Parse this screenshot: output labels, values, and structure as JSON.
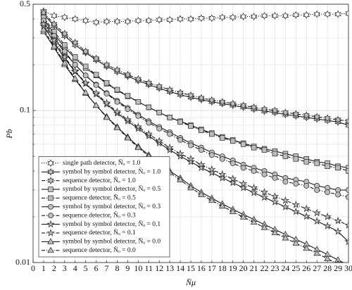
{
  "chart_data": {
    "type": "line",
    "x_label": "N̄μ",
    "y_label": "Pb",
    "x": [
      1,
      2,
      3,
      4,
      5,
      6,
      7,
      8,
      9,
      10,
      11,
      12,
      13,
      14,
      15,
      16,
      17,
      18,
      19,
      20,
      21,
      22,
      23,
      24,
      25,
      26,
      27,
      28,
      29,
      30
    ],
    "xlim": [
      0,
      30
    ],
    "xticks": [
      0,
      1,
      2,
      3,
      4,
      5,
      6,
      7,
      8,
      9,
      10,
      11,
      12,
      13,
      14,
      15,
      16,
      17,
      18,
      19,
      20,
      21,
      22,
      23,
      24,
      25,
      26,
      27,
      28,
      29,
      30
    ],
    "ylim": [
      0.01,
      0.5
    ],
    "yticks": [
      0.01,
      0.1,
      0.5
    ],
    "y_minor_grid": [
      0.02,
      0.03,
      0.04,
      0.05,
      0.06,
      0.07,
      0.08,
      0.09,
      0.2,
      0.3,
      0.4
    ],
    "log_y": true,
    "grid": true,
    "legend": "lower left",
    "series": [
      {
        "name": "single path detector, N̄ₒ = 1.0",
        "marker": "hexagram",
        "dash": "dotted",
        "color": "#000000",
        "marker_fill": "#ffffff",
        "values": [
          0.45,
          0.42,
          0.41,
          0.4,
          0.39,
          0.38,
          0.385,
          0.385,
          0.385,
          0.39,
          0.39,
          0.395,
          0.395,
          0.4,
          0.4,
          0.405,
          0.405,
          0.41,
          0.41,
          0.415,
          0.415,
          0.42,
          0.42,
          0.42,
          0.425,
          0.425,
          0.43,
          0.43,
          0.43,
          0.435
        ]
      },
      {
        "name": "symbol by symbol detector, N̄ₒ = 1.0",
        "marker": "hexagram",
        "dash": "solid",
        "color": "#000000",
        "marker_fill": "#bdbdbd",
        "values": [
          0.43,
          0.36,
          0.31,
          0.27,
          0.24,
          0.215,
          0.195,
          0.18,
          0.168,
          0.157,
          0.148,
          0.14,
          0.133,
          0.127,
          0.122,
          0.118,
          0.114,
          0.111,
          0.108,
          0.105,
          0.102,
          0.099,
          0.097,
          0.094,
          0.092,
          0.09,
          0.088,
          0.086,
          0.084,
          0.08
        ]
      },
      {
        "name": "sequence detector, N̄ₒ = 1.0",
        "marker": "hexagram",
        "dash": "dashdot",
        "color": "#000000",
        "marker_fill": "#bdbdbd",
        "values": [
          0.44,
          0.37,
          0.32,
          0.28,
          0.245,
          0.22,
          0.2,
          0.185,
          0.172,
          0.161,
          0.152,
          0.144,
          0.137,
          0.131,
          0.126,
          0.121,
          0.117,
          0.114,
          0.111,
          0.108,
          0.105,
          0.102,
          0.1,
          0.097,
          0.095,
          0.093,
          0.091,
          0.089,
          0.087,
          0.085
        ]
      },
      {
        "name": "symbol by symbol detector, N̄ₒ = 0.5",
        "marker": "square",
        "dash": "solid",
        "color": "#000000",
        "marker_fill": "#bdbdbd",
        "values": [
          0.4,
          0.32,
          0.26,
          0.22,
          0.19,
          0.17,
          0.15,
          0.136,
          0.124,
          0.114,
          0.105,
          0.097,
          0.09,
          0.085,
          0.08,
          0.075,
          0.071,
          0.067,
          0.064,
          0.061,
          0.058,
          0.056,
          0.054,
          0.052,
          0.05,
          0.048,
          0.046,
          0.045,
          0.043,
          0.042
        ]
      },
      {
        "name": "sequence detector, N̄ₒ = 0.5",
        "marker": "square",
        "dash": "dashdot",
        "color": "#000000",
        "marker_fill": "#bdbdbd",
        "values": [
          0.41,
          0.33,
          0.27,
          0.225,
          0.195,
          0.172,
          0.152,
          0.137,
          0.125,
          0.114,
          0.105,
          0.097,
          0.09,
          0.084,
          0.079,
          0.074,
          0.07,
          0.066,
          0.063,
          0.06,
          0.057,
          0.055,
          0.052,
          0.05,
          0.048,
          0.046,
          0.045,
          0.043,
          0.042,
          0.04
        ]
      },
      {
        "name": "symbol by symbol detector, N̄ₒ = 0.3",
        "marker": "circle",
        "dash": "solid",
        "color": "#000000",
        "marker_fill": "#bdbdbd",
        "values": [
          0.38,
          0.3,
          0.24,
          0.2,
          0.17,
          0.148,
          0.13,
          0.116,
          0.104,
          0.094,
          0.085,
          0.078,
          0.072,
          0.066,
          0.061,
          0.057,
          0.053,
          0.05,
          0.047,
          0.044,
          0.042,
          0.04,
          0.038,
          0.036,
          0.035,
          0.034,
          0.032,
          0.031,
          0.03,
          0.03
        ]
      },
      {
        "name": "sequence detector, N̄ₒ = 0.3",
        "marker": "circle",
        "dash": "dashdot",
        "color": "#000000",
        "marker_fill": "#bdbdbd",
        "values": [
          0.39,
          0.31,
          0.245,
          0.2,
          0.17,
          0.147,
          0.129,
          0.114,
          0.102,
          0.092,
          0.083,
          0.076,
          0.07,
          0.064,
          0.059,
          0.055,
          0.051,
          0.048,
          0.045,
          0.042,
          0.04,
          0.038,
          0.036,
          0.034,
          0.033,
          0.032,
          0.03,
          0.029,
          0.028,
          0.027
        ]
      },
      {
        "name": "symbol by symbol detector, N̄ₒ = 0.1",
        "marker": "star",
        "dash": "solid",
        "color": "#000000",
        "marker_fill": "#bdbdbd",
        "values": [
          0.36,
          0.28,
          0.22,
          0.18,
          0.15,
          0.128,
          0.11,
          0.096,
          0.085,
          0.076,
          0.068,
          0.061,
          0.055,
          0.05,
          0.046,
          0.042,
          0.039,
          0.036,
          0.0335,
          0.031,
          0.0288,
          0.0268,
          0.025,
          0.0232,
          0.0216,
          0.0201,
          0.0187,
          0.0174,
          0.016,
          0.0137
        ]
      },
      {
        "name": "sequence detector, N̄ₒ = 0.1",
        "marker": "star",
        "dash": "dashdot",
        "color": "#000000",
        "marker_fill": "#bdbdbd",
        "values": [
          0.37,
          0.29,
          0.225,
          0.182,
          0.152,
          0.13,
          0.112,
          0.098,
          0.087,
          0.078,
          0.07,
          0.063,
          0.057,
          0.052,
          0.048,
          0.044,
          0.041,
          0.038,
          0.0355,
          0.033,
          0.031,
          0.029,
          0.0272,
          0.0256,
          0.024,
          0.0226,
          0.0212,
          0.02,
          0.0188,
          0.0176
        ]
      },
      {
        "name": "symbol by symbol detector, N̄ₒ = 0.0",
        "marker": "triangle",
        "dash": "solid",
        "color": "#000000",
        "marker_fill": "#bdbdbd",
        "values": [
          0.33,
          0.26,
          0.2,
          0.16,
          0.13,
          0.108,
          0.091,
          0.078,
          0.067,
          0.058,
          0.051,
          0.045,
          0.04,
          0.036,
          0.032,
          0.029,
          0.0265,
          0.0243,
          0.0224,
          0.0207,
          0.0192,
          0.0178,
          0.0165,
          0.0153,
          0.0142,
          0.0132,
          0.0122,
          0.0113,
          0.0104,
          0.0096
        ]
      },
      {
        "name": "sequence detector, N̄ₒ = 0.0",
        "marker": "triangle",
        "dash": "dashdot",
        "color": "#000000",
        "marker_fill": "#bdbdbd",
        "values": [
          0.34,
          0.265,
          0.205,
          0.162,
          0.131,
          0.108,
          0.09,
          0.077,
          0.066,
          0.057,
          0.05,
          0.044,
          0.039,
          0.035,
          0.031,
          0.028,
          0.0256,
          0.0235,
          0.0216,
          0.0199,
          0.0184,
          0.017,
          0.0157,
          0.0145,
          0.0134,
          0.0124,
          0.0115,
          0.0106,
          0.0098,
          0.009
        ]
      }
    ]
  }
}
